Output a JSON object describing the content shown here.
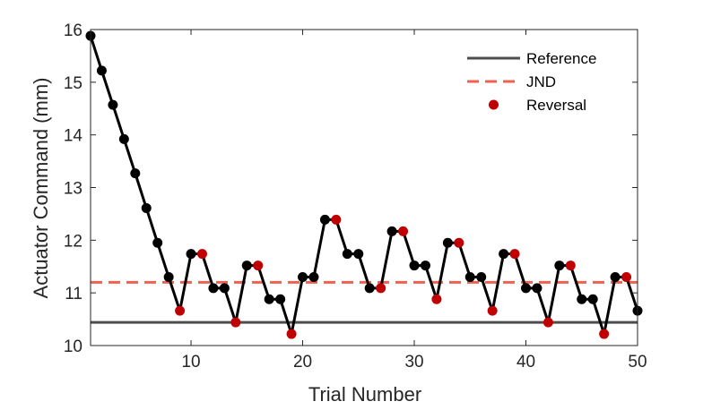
{
  "chart_data": {
    "type": "line",
    "xlabel": "Trial Number",
    "ylabel": "Actuator Command (mm)",
    "xlim": [
      1,
      50
    ],
    "ylim": [
      10,
      16
    ],
    "xticks": [
      10,
      20,
      30,
      40,
      50
    ],
    "yticks": [
      10,
      11,
      12,
      13,
      14,
      15,
      16
    ],
    "grid": false,
    "legend_position": "top-right",
    "legend": [
      "Reference",
      "JND",
      "Reversal"
    ],
    "reference": {
      "name": "Reference",
      "value": 10.44,
      "color": "#4d4d4d"
    },
    "jnd": {
      "name": "JND",
      "value": 11.2,
      "color": "#f0604f"
    },
    "series": [
      {
        "name": "",
        "color": "#000000",
        "x": [
          1,
          2,
          3,
          4,
          5,
          6,
          7,
          8,
          9,
          10,
          11,
          12,
          13,
          14,
          15,
          16,
          17,
          18,
          19,
          20,
          21,
          22,
          23,
          24,
          25,
          26,
          27,
          28,
          29,
          30,
          31,
          32,
          33,
          34,
          35,
          36,
          37,
          38,
          39,
          40,
          41,
          42,
          43,
          44,
          45,
          46,
          47,
          48,
          49,
          50
        ],
        "values": [
          15.88,
          15.22,
          14.57,
          13.92,
          13.27,
          12.61,
          11.95,
          11.3,
          10.66,
          11.74,
          11.74,
          11.09,
          11.09,
          10.44,
          11.52,
          11.52,
          10.88,
          10.88,
          10.22,
          11.3,
          11.3,
          12.39,
          12.39,
          11.74,
          11.74,
          11.09,
          11.09,
          12.17,
          12.17,
          11.52,
          11.52,
          10.88,
          11.95,
          11.95,
          11.3,
          11.3,
          10.66,
          11.74,
          11.74,
          11.09,
          11.09,
          10.44,
          11.52,
          11.52,
          10.88,
          10.88,
          10.22,
          11.3,
          11.3,
          10.66
        ]
      }
    ],
    "reversals": {
      "name": "Reversal",
      "color": "#c00000",
      "x": [
        9,
        11,
        14,
        16,
        19,
        23,
        27,
        29,
        32,
        34,
        37,
        39,
        42,
        44,
        47,
        49
      ]
    }
  }
}
